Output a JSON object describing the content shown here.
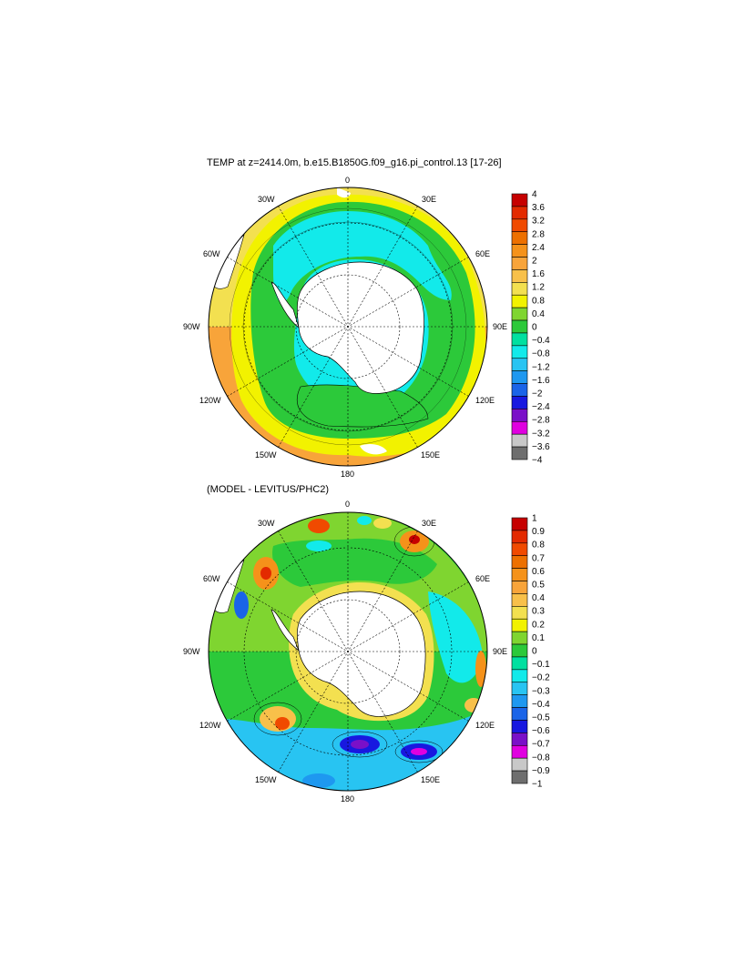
{
  "panel1": {
    "title": "TEMP at z=2414.0m, b.e15.B1850G.f09_g16.pi_control.13 [17-26]",
    "colorbar_labels": [
      "4",
      "3.6",
      "3.2",
      "2.8",
      "2.4",
      "2",
      "1.6",
      "1.2",
      "0.8",
      "0.4",
      "0",
      "−0.4",
      "−0.8",
      "−1.2",
      "−1.6",
      "−2",
      "−2.4",
      "−2.8",
      "−3.2",
      "−3.6",
      "−4"
    ]
  },
  "panel2": {
    "title": "(MODEL - LEVITUS/PHC2)",
    "colorbar_labels": [
      "1",
      "0.9",
      "0.8",
      "0.7",
      "0.6",
      "0.5",
      "0.4",
      "0.3",
      "0.2",
      "0.1",
      "0",
      "−0.1",
      "−0.2",
      "−0.3",
      "−0.4",
      "−0.5",
      "−0.6",
      "−0.7",
      "−0.8",
      "−0.9",
      "−1"
    ]
  },
  "longitude_labels": {
    "top": "0",
    "top_right": "30E",
    "right_upper": "60E",
    "right": "90E",
    "right_lower": "120E",
    "bottom_right": "150E",
    "bottom": "180",
    "bottom_left": "150W",
    "left_lower": "120W",
    "left": "90W",
    "left_upper": "60W",
    "top_left": "30W"
  },
  "colors": {
    "scale": [
      "#c60000",
      "#e32a00",
      "#f04a00",
      "#ed7000",
      "#f5921a",
      "#f8a43a",
      "#f8c04a",
      "#f3e050",
      "#f2f200",
      "#7fd530",
      "#2cc93a",
      "#00e0a0",
      "#12eaea",
      "#28c4f2",
      "#1e98f0",
      "#1a64e8",
      "#1818e0",
      "#7a10c8",
      "#e000e0",
      "#c8c8c8",
      "#6e6e6e"
    ],
    "land": "#ffffff"
  }
}
